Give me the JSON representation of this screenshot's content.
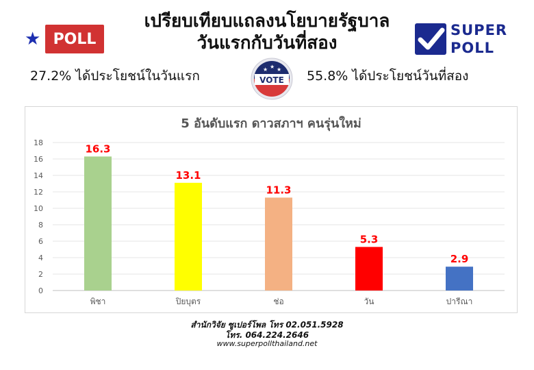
{
  "header": {
    "title_line1": "เปรียบเทียบแถลงนโยบายรัฐบาล",
    "title_line2": "วันแรกกับวันที่สอง",
    "poll_label": "POLL",
    "logo_line1": "SUPER",
    "logo_line2": "POLL",
    "vote_label": "VOTE"
  },
  "stats": {
    "left": "27.2% ได้ประโยชน์ในวันแรก",
    "right": "55.8% ได้ประโยชน์วันที่สอง"
  },
  "chart_data": {
    "type": "bar",
    "title": "5 อันดับแรก ดาวสภาฯ คนรุ่นใหม่",
    "categories": [
      "พิชา",
      "ปิยบุตร",
      "ช่อ",
      "วัน",
      "ปารีณา"
    ],
    "values": [
      16.3,
      13.1,
      11.3,
      5.3,
      2.9
    ],
    "data_labels": [
      "16.3",
      "13.1",
      "11.3",
      "5.3",
      "2.9"
    ],
    "bar_colors": [
      "#a9d18e",
      "#ffff00",
      "#f4b183",
      "#ff0000",
      "#4472c4"
    ],
    "label_color": "#ff0000",
    "ylim": [
      0,
      18
    ],
    "yticks": [
      "0",
      "2",
      "4",
      "6",
      "8",
      "10",
      "12",
      "14",
      "16",
      "18"
    ],
    "grid": true,
    "xlabel": "",
    "ylabel": ""
  },
  "footer": {
    "line1": "สำนักวิจัย ซูเปอร์โพล โทร 02.051.5928",
    "line2": "โทร. 064.224.2646",
    "line3": "www.superpollthailand.net"
  },
  "colors": {
    "brand_blue": "#1b2a8f",
    "poll_red": "#d13232"
  }
}
